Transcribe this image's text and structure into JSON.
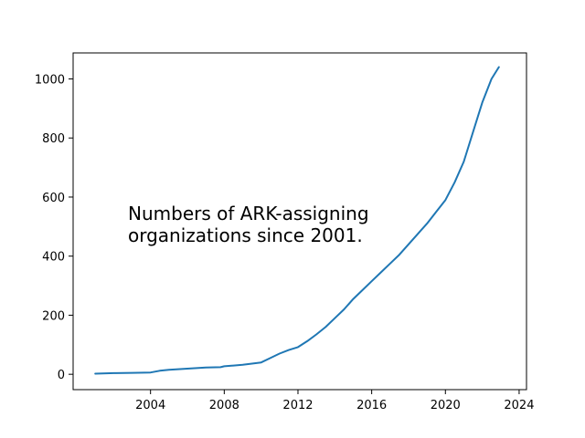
{
  "chart_data": {
    "type": "line",
    "title": "",
    "xlabel": "",
    "ylabel": "",
    "xlim": [
      1999.8,
      2024.4
    ],
    "ylim": [
      -52,
      1088
    ],
    "grid": false,
    "xticks": [
      2004,
      2008,
      2012,
      2016,
      2020,
      2024
    ],
    "xtick_labels": [
      "2004",
      "2008",
      "2012",
      "2016",
      "2020",
      "2024"
    ],
    "yticks": [
      0,
      200,
      400,
      600,
      800,
      1000
    ],
    "ytick_labels": [
      "0",
      "200",
      "400",
      "600",
      "800",
      "1000"
    ],
    "annotation_lines": [
      "Numbers of ARK-assigning",
      "organizations since 2001."
    ],
    "line_color": "#1f77b4",
    "series": [
      {
        "x": [
          2001.0,
          2002.0,
          2003.0,
          2004.0,
          2004.5,
          2005.0,
          2006.0,
          2007.0,
          2007.8,
          2008.0,
          2009.0,
          2010.0,
          2010.5,
          2011.0,
          2011.5,
          2012.0,
          2012.5,
          2013.0,
          2013.5,
          2014.0,
          2014.5,
          2015.0,
          2015.5,
          2016.0,
          2016.5,
          2017.0,
          2017.5,
          2018.0,
          2018.5,
          2019.0,
          2019.5,
          2020.0,
          2020.5,
          2021.0,
          2021.5,
          2022.0,
          2022.5,
          2022.9
        ],
        "y": [
          2,
          4,
          5,
          6,
          12,
          15,
          19,
          23,
          24,
          27,
          32,
          40,
          55,
          70,
          82,
          92,
          112,
          135,
          160,
          190,
          220,
          255,
          285,
          315,
          345,
          375,
          405,
          440,
          475,
          510,
          550,
          590,
          650,
          720,
          820,
          920,
          1000,
          1040
        ]
      }
    ]
  }
}
